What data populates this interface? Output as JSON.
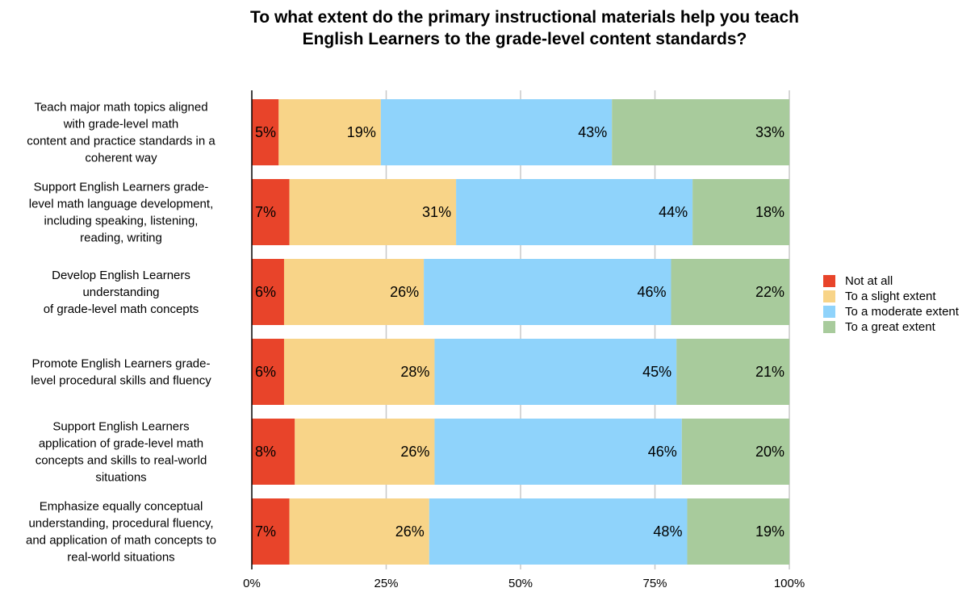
{
  "chart_data": {
    "type": "bar",
    "orientation": "horizontal",
    "stacked": true,
    "title": "To what extent do the primary instructional materials help you teach English Learners to the grade-level content standards?",
    "xlabel": "",
    "ylabel": "",
    "xlim": [
      0,
      100
    ],
    "x_ticks": [
      "0%",
      "25%",
      "50%",
      "75%",
      "100%"
    ],
    "grid": true,
    "legend_position": "right",
    "categories": [
      [
        "Teach major math topics aligned",
        "with grade-level math",
        "content and practice standards in a",
        "coherent way"
      ],
      [
        "Support English Learners  grade-",
        "level math language development,",
        "including speaking, listening,",
        "reading, writing"
      ],
      [
        "Develop English Learners",
        "understanding",
        "of grade-level math concepts"
      ],
      [
        "Promote English Learners  grade-",
        "level procedural skills and fluency"
      ],
      [
        "Support English Learners",
        "application of grade-level math",
        "concepts and skills to real-world",
        "situations"
      ],
      [
        "Emphasize equally conceptual",
        "understanding, procedural fluency,",
        "and application of math concepts to",
        "real-world situations"
      ]
    ],
    "series": [
      {
        "name": "Not at all",
        "color": "#e8442a",
        "values": [
          5,
          7,
          6,
          6,
          8,
          7
        ],
        "labels": [
          "5%",
          "7%",
          "6%",
          "6%",
          "8%",
          "7%"
        ]
      },
      {
        "name": "To a slight extent",
        "color": "#f8d488",
        "values": [
          19,
          31,
          26,
          28,
          26,
          26
        ],
        "labels": [
          "19%",
          "31%",
          "26%",
          "28%",
          "26%",
          "26%"
        ]
      },
      {
        "name": "To a moderate extent",
        "color": "#8fd3fb",
        "values": [
          43,
          44,
          46,
          45,
          46,
          48
        ],
        "labels": [
          "43%",
          "44%",
          "46%",
          "45%",
          "46%",
          "48%"
        ]
      },
      {
        "name": "To a great extent",
        "color": "#a8cb9c",
        "values": [
          33,
          18,
          22,
          21,
          20,
          19
        ],
        "labels": [
          "33%",
          "18%",
          "22%",
          "21%",
          "20%",
          "19%"
        ]
      }
    ]
  }
}
